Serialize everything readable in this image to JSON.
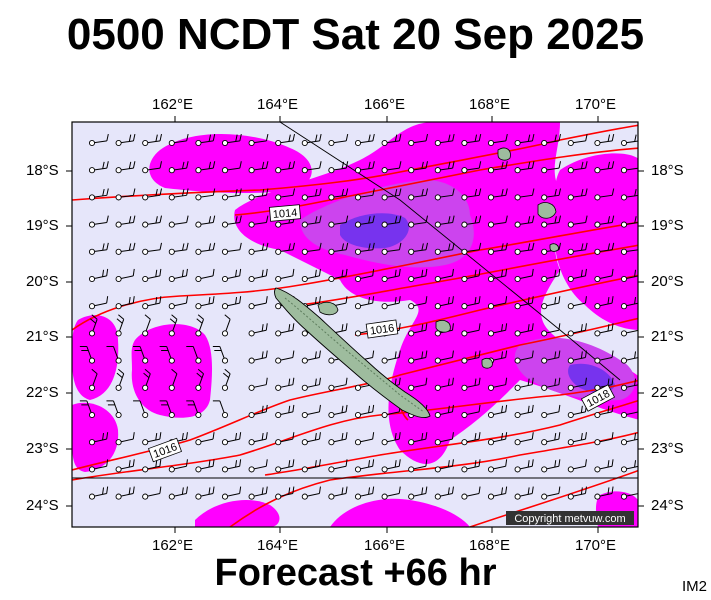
{
  "header": {
    "title": "0500 NCDT Sat 20 Sep 2025"
  },
  "footer": {
    "forecast": "Forecast +66 hr",
    "corner_code": "IM2"
  },
  "map": {
    "copyright": "Copyright metvuw.com",
    "lon_labels": [
      "162°E",
      "164°E",
      "166°E",
      "168°E",
      "170°E"
    ],
    "lat_labels": [
      "18°S",
      "19°S",
      "20°S",
      "21°S",
      "22°S",
      "23°S",
      "24°S"
    ],
    "isobar_labels": [
      "1014",
      "1016",
      "1016",
      "1018"
    ],
    "colors": {
      "background": "#e6e6fa",
      "precip_light": "#ff00ff",
      "precip_mid": "#cc44ee",
      "precip_heavy": "#7733ee",
      "isobar": "#ff0000",
      "land": "#9ebc9e"
    }
  }
}
